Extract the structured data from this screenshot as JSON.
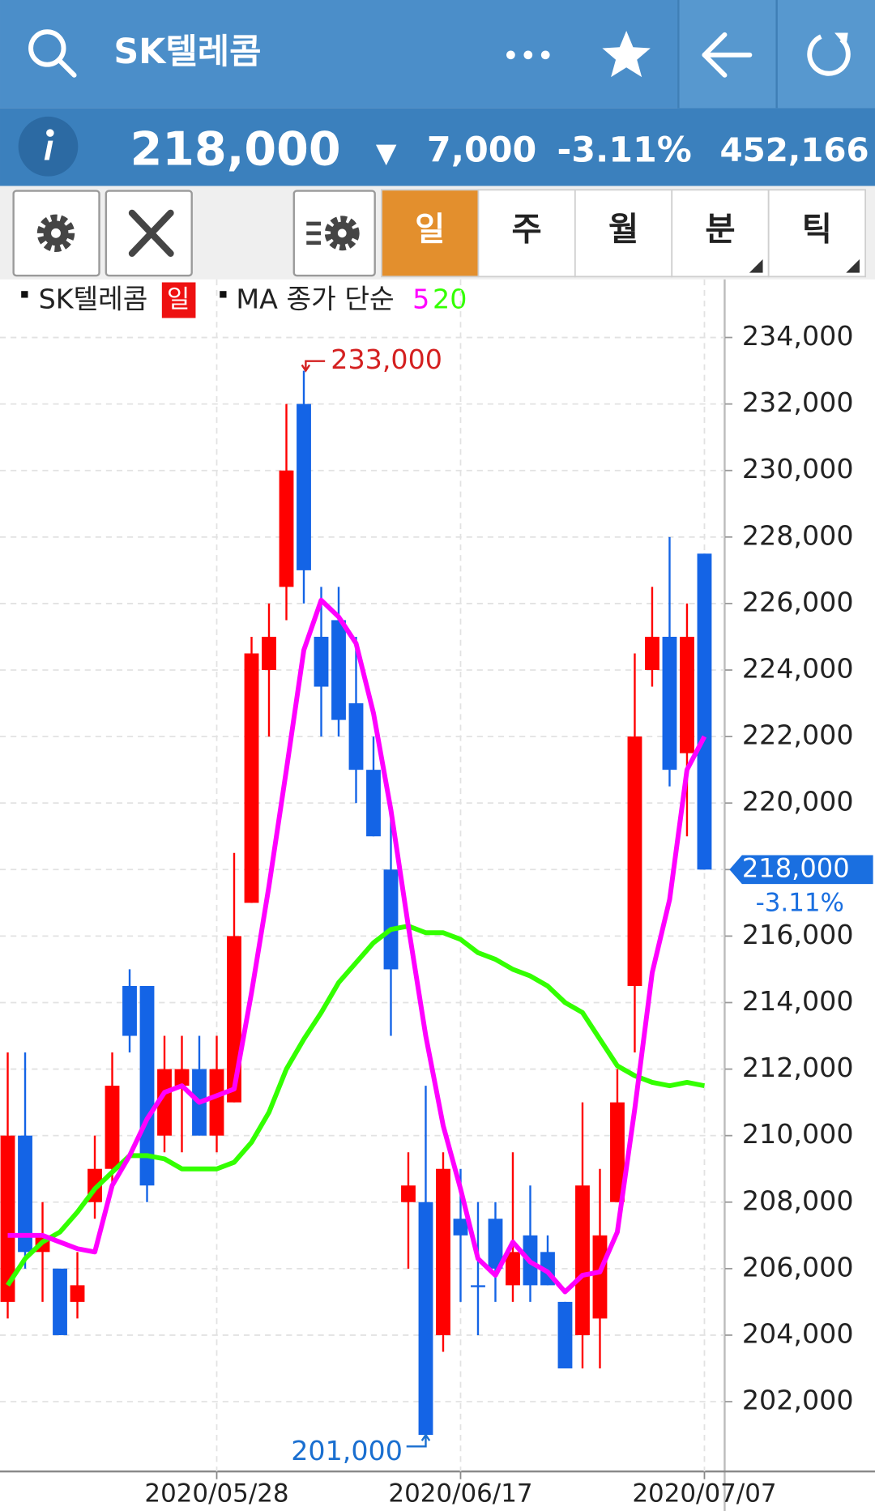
{
  "header": {
    "title": "SK텔레콤"
  },
  "quote": {
    "price": "218,000",
    "direction": "▼",
    "change": "7,000",
    "change_pct": "-3.11%",
    "volume": "452,166"
  },
  "toolbar": {
    "tabs": [
      "일",
      "주",
      "월",
      "분",
      "틱"
    ]
  },
  "chart_data": {
    "type": "candlestick",
    "legend": {
      "symbol": "SK텔레콤",
      "period": "일",
      "ma_label": "MA 종가 단순"
    },
    "categories": [
      null,
      null,
      null,
      null,
      null,
      null,
      null,
      null,
      null,
      null,
      null,
      null,
      "2020/05/28",
      null,
      null,
      null,
      null,
      null,
      null,
      null,
      null,
      null,
      null,
      null,
      null,
      null,
      "2020/06/17",
      null,
      null,
      null,
      null,
      null,
      null,
      null,
      null,
      null,
      null,
      null,
      null,
      null,
      "2020/07/07"
    ],
    "open": [
      205000,
      210000,
      206500,
      206000,
      205000,
      208000,
      209000,
      214500,
      214500,
      210000,
      211500,
      212000,
      210000,
      211000,
      217000,
      224000,
      226500,
      232000,
      225000,
      225500,
      223000,
      221000,
      218000,
      208000,
      208000,
      204000,
      207500,
      205500,
      207500,
      205500,
      207000,
      206500,
      205000,
      204000,
      204500,
      208000,
      214500,
      224000,
      225000,
      221500,
      227500
    ],
    "high": [
      212500,
      212500,
      208000,
      206000,
      206500,
      210000,
      212500,
      215000,
      214500,
      213000,
      213000,
      213000,
      213000,
      218500,
      225000,
      226000,
      232000,
      233000,
      226500,
      226500,
      225000,
      222000,
      219500,
      209500,
      211500,
      209500,
      209000,
      208000,
      208000,
      209500,
      208500,
      207000,
      205000,
      211000,
      209000,
      212000,
      224500,
      226500,
      228000,
      226000,
      227500
    ],
    "low": [
      204500,
      206000,
      205000,
      204000,
      204500,
      207500,
      208500,
      212500,
      208000,
      209500,
      209500,
      210000,
      209500,
      211000,
      217000,
      222000,
      225500,
      226000,
      222000,
      222000,
      220000,
      219000,
      213000,
      206000,
      201000,
      203500,
      205000,
      204000,
      205000,
      205000,
      205000,
      205500,
      203000,
      203000,
      203000,
      208000,
      212500,
      223500,
      220500,
      219000,
      218000
    ],
    "close": [
      210000,
      206500,
      207000,
      204000,
      205500,
      209000,
      211500,
      213000,
      208500,
      212000,
      212000,
      210000,
      212000,
      216000,
      224500,
      225000,
      230000,
      227000,
      223500,
      222500,
      221000,
      219000,
      215000,
      208500,
      201000,
      209000,
      207000,
      205500,
      206000,
      206500,
      205500,
      205500,
      203000,
      208500,
      207000,
      211000,
      222000,
      225000,
      221000,
      225000,
      218000
    ],
    "up_color": "#ff0000",
    "down_color": "#1464e6",
    "series": [
      {
        "name": "5",
        "color": "#ff00ff",
        "values": [
          207000,
          207000,
          207000,
          206800,
          206600,
          206500,
          208500,
          209400,
          210500,
          211300,
          211500,
          211000,
          211200,
          211400,
          214300,
          217500,
          221000,
          224600,
          226100,
          225600,
          224800,
          222700,
          219800,
          216300,
          213000,
          210300,
          208400,
          206300,
          205800,
          206800,
          206200,
          205900,
          205300,
          205800,
          205900,
          207100,
          210800,
          214900,
          217100,
          221000,
          222000
        ]
      },
      {
        "name": "20",
        "color": "#33ff00",
        "values": [
          205500,
          206300,
          206800,
          207100,
          207700,
          208400,
          208900,
          209400,
          209400,
          209300,
          209000,
          209000,
          209000,
          209200,
          209800,
          210700,
          212000,
          212900,
          213700,
          214600,
          215200,
          215800,
          216200,
          216300,
          216100,
          216100,
          215900,
          215500,
          215300,
          215000,
          214800,
          214500,
          214000,
          213700,
          212900,
          212100,
          211800,
          211600,
          211500,
          211600,
          211500
        ]
      }
    ],
    "ylim": [
      199900,
      235600
    ],
    "yticks": [
      {
        "value": 202000,
        "label": "202,000"
      },
      {
        "value": 204000,
        "label": "204,000"
      },
      {
        "value": 206000,
        "label": "206,000"
      },
      {
        "value": 208000,
        "label": "208,000"
      },
      {
        "value": 210000,
        "label": "210,000"
      },
      {
        "value": 212000,
        "label": "212,000"
      },
      {
        "value": 214000,
        "label": "214,000"
      },
      {
        "value": 216000,
        "label": "216,000"
      },
      {
        "value": 218000,
        "label": "218,000"
      },
      {
        "value": 220000,
        "label": "220,000"
      },
      {
        "value": 222000,
        "label": "222,000"
      },
      {
        "value": 224000,
        "label": "224,000"
      },
      {
        "value": 226000,
        "label": "226,000"
      },
      {
        "value": 228000,
        "label": "228,000"
      },
      {
        "value": 230000,
        "label": "230,000"
      },
      {
        "value": 232000,
        "label": "232,000"
      },
      {
        "value": 234000,
        "label": "234,000"
      }
    ],
    "annotations": [
      {
        "value": 233000,
        "label": "233,000"
      },
      {
        "value": 201000,
        "label": "201,000"
      }
    ],
    "last": {
      "value": 218000,
      "label": "218,000",
      "change": "-3.11%"
    },
    "grid": true
  }
}
